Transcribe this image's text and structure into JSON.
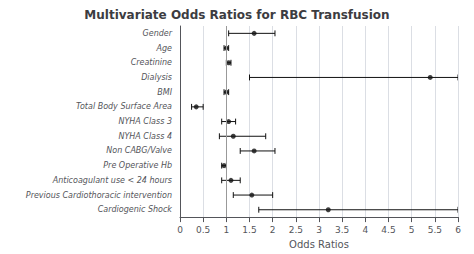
{
  "chart_data": {
    "type": "forest",
    "title": "Multivariate Odds Ratios for RBC Transfusion",
    "xlabel": "Odds Ratios",
    "categories": [
      "Gender",
      "Age",
      "Creatinine",
      "Dialysis",
      "BMI",
      "Total Body Surface Area",
      "NYHA Class 3",
      "NYHA Class 4",
      "Non CABG/Valve",
      "Pre Operative Hb",
      "Anticoagulant use < 24 hours",
      "Previous Cardiothoracic intervention",
      "Cardiogenic Shock"
    ],
    "values": [
      1.6,
      1.0,
      1.05,
      5.4,
      1.0,
      0.35,
      1.05,
      1.15,
      1.6,
      0.95,
      1.1,
      1.55,
      3.2
    ],
    "lower": [
      1.05,
      0.95,
      1.0,
      1.5,
      0.95,
      0.25,
      0.9,
      0.85,
      1.3,
      0.9,
      0.9,
      1.15,
      1.7
    ],
    "upper": [
      2.05,
      1.05,
      1.1,
      6.0,
      1.05,
      0.5,
      1.2,
      1.85,
      2.05,
      1.0,
      1.3,
      2.0,
      6.0
    ],
    "vline": 1.0,
    "xlim": [
      0,
      6
    ],
    "xticks": [
      0,
      0.5,
      1,
      1.5,
      2,
      2.5,
      3,
      3.5,
      4,
      4.5,
      5,
      5.5,
      6
    ],
    "color": "#111111",
    "grid": true
  }
}
